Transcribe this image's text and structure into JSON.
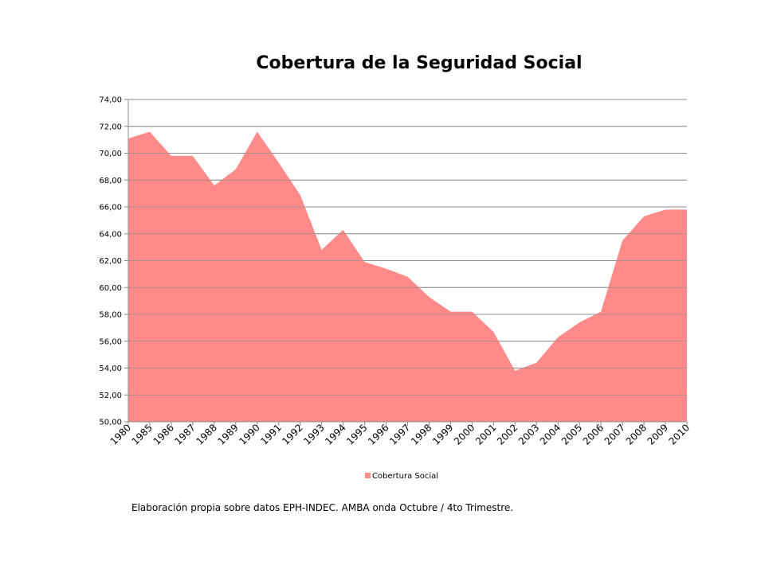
{
  "footnote": "Elaboración propia sobre datos EPH-INDEC. AMBA onda Octubre / 4to Trimestre.",
  "chart_data": {
    "type": "area",
    "title": "Cobertura de la Seguridad Social",
    "xlabel": "",
    "ylabel": "",
    "ylim": [
      50,
      74
    ],
    "ytick_step": 2,
    "ytick_format": "comma-2-decimals",
    "grid": true,
    "legend_position": "bottom",
    "categories": [
      "1980",
      "1985",
      "1986",
      "1987",
      "1988",
      "1989",
      "1990",
      "1991",
      "1992",
      "1993",
      "1994",
      "1995",
      "1996",
      "1997",
      "1998",
      "1999",
      "2000",
      "2001",
      "2002",
      "2003",
      "2004",
      "2005",
      "2006",
      "2007",
      "2008",
      "2009",
      "2010"
    ],
    "series": [
      {
        "name": "Cobertura Social",
        "color": "#ff8a8a",
        "values": [
          71.1,
          71.6,
          69.8,
          69.8,
          67.6,
          68.8,
          71.6,
          69.3,
          66.9,
          62.8,
          64.3,
          61.9,
          61.4,
          60.8,
          59.3,
          58.2,
          58.2,
          56.7,
          53.8,
          54.4,
          56.3,
          57.4,
          58.2,
          63.5,
          65.3,
          65.8,
          65.8
        ]
      }
    ]
  }
}
